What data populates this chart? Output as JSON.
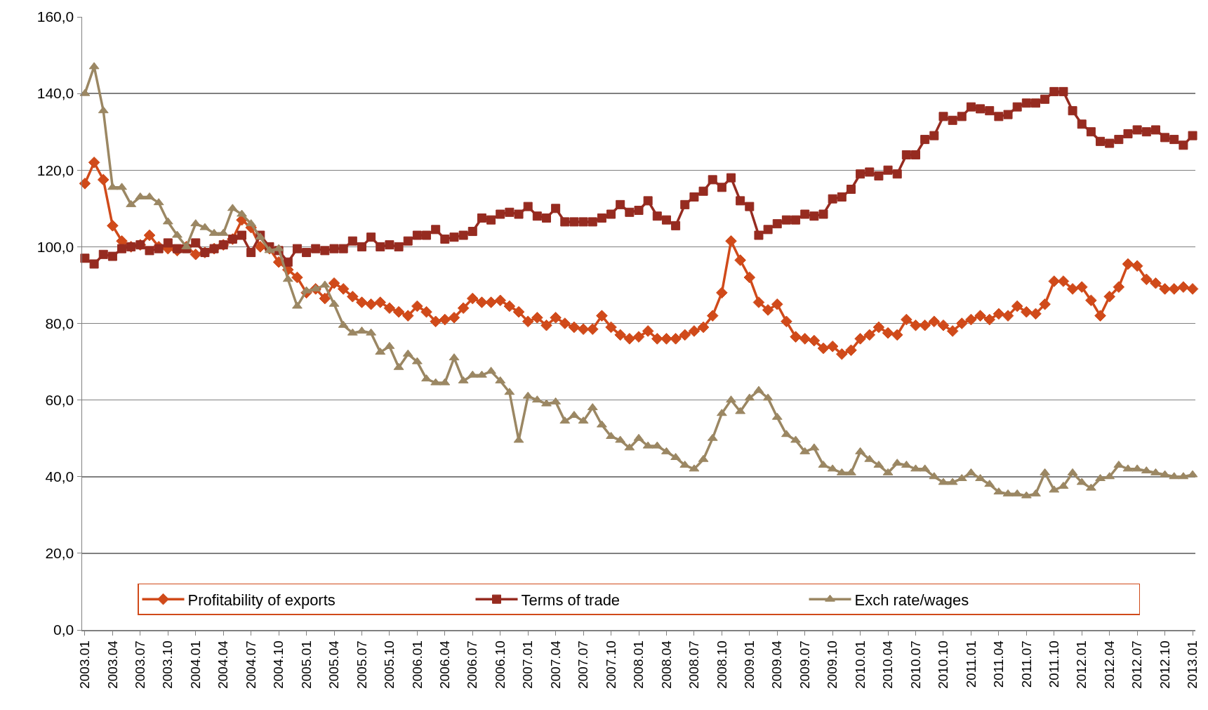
{
  "chart_data": {
    "type": "line",
    "categories": [
      "2003.01",
      null,
      null,
      "2003.04",
      null,
      null,
      "2003.07",
      null,
      null,
      "2003.10",
      null,
      null,
      "2004.01",
      null,
      null,
      "2004.04",
      null,
      null,
      "2004.07",
      null,
      null,
      "2004.10",
      null,
      null,
      "2005.01",
      null,
      null,
      "2005.04",
      null,
      null,
      "2005.07",
      null,
      null,
      "2005.10",
      null,
      null,
      "2006.01",
      null,
      null,
      "2006.04",
      null,
      null,
      "2006.07",
      null,
      null,
      "2006.10",
      null,
      null,
      "2007.01",
      null,
      null,
      "2007.04",
      null,
      null,
      "2007.07",
      null,
      null,
      "2007.10",
      null,
      null,
      "2008.01",
      null,
      null,
      "2008.04",
      null,
      null,
      "2008.07",
      null,
      null,
      "2008.10",
      null,
      null,
      "2009.01",
      null,
      null,
      "2009.04",
      null,
      null,
      "2009.07",
      null,
      null,
      "2009.10",
      null,
      null,
      "2010.01",
      null,
      null,
      "2010.04",
      null,
      null,
      "2010.07",
      null,
      null,
      "2010.10",
      null,
      null,
      "2011.01",
      null,
      null,
      "2011.04",
      null,
      null,
      "2011.07",
      null,
      null,
      "2011.10",
      null,
      null,
      "2012.01",
      null,
      null,
      "2012.04",
      null,
      null,
      "2012.07",
      null,
      null,
      "2012.10",
      null,
      null,
      "2013.01"
    ],
    "series": [
      {
        "name": "Profitability of exports",
        "color": "#d04a1a",
        "marker": "diamond",
        "values": [
          116.5,
          122,
          117.5,
          105.5,
          101.5,
          100,
          100.5,
          103,
          100,
          99.5,
          99,
          100,
          98,
          98.5,
          99.5,
          100.5,
          102,
          107,
          105,
          100,
          99.5,
          96,
          94,
          92,
          88,
          89,
          86.5,
          90.5,
          89,
          87,
          85.5,
          85,
          85.5,
          84,
          83,
          82,
          84.5,
          83,
          80.5,
          81,
          81.5,
          84,
          86.5,
          85.5,
          85.5,
          86,
          84.5,
          83,
          80.5,
          81.5,
          79.5,
          81.5,
          80,
          79,
          78.5,
          78.5,
          82,
          79,
          77,
          76,
          76.5,
          78,
          76,
          76,
          76,
          77,
          78,
          79,
          82,
          88,
          101.5,
          96.5,
          92,
          85.5,
          83.5,
          85,
          80.5,
          76.5,
          76,
          75.5,
          73.5,
          74,
          72,
          73,
          76,
          77,
          79,
          77.5,
          77,
          81,
          79.5,
          79.5,
          80.5,
          79.5,
          78,
          80,
          81,
          82,
          81,
          82.5,
          82,
          84.5,
          83,
          82.5,
          85,
          91,
          91,
          89,
          89.5,
          86,
          82,
          87,
          89.5,
          95.5,
          95,
          91.5,
          90.5,
          89,
          89,
          89.5,
          89
        ]
      },
      {
        "name": "Terms of trade",
        "color": "#962b20",
        "marker": "square",
        "values": [
          97,
          95.5,
          98,
          97.5,
          99.5,
          100,
          100.5,
          99,
          99.5,
          101,
          99.5,
          99.5,
          101,
          98.5,
          99.5,
          100.5,
          102,
          103,
          98.5,
          103,
          100,
          99,
          96,
          99.5,
          98.5,
          99.5,
          99,
          99.5,
          99.5,
          101.5,
          100,
          102.5,
          100,
          100.5,
          100,
          101.5,
          103,
          103,
          104.5,
          102,
          102.5,
          103,
          104,
          107.5,
          107,
          108.5,
          109,
          108.5,
          110.5,
          108,
          107.5,
          110,
          106.5,
          106.5,
          106.5,
          106.5,
          107.5,
          108.5,
          111,
          109,
          109.5,
          112,
          108,
          107,
          105.5,
          111,
          113,
          114.5,
          117.5,
          115.5,
          118,
          112,
          110.5,
          103,
          104.5,
          106,
          107,
          107,
          108.5,
          108,
          108.5,
          112.5,
          113,
          115,
          119,
          119.5,
          118.5,
          120,
          119,
          124,
          124,
          128,
          129,
          134,
          133,
          134,
          136.5,
          136,
          135.5,
          134,
          134.5,
          136.5,
          137.5,
          137.5,
          138.5,
          140.5,
          140.5,
          135.5,
          132,
          130,
          127.5,
          127,
          128,
          129.5,
          130.5,
          130,
          130.5,
          128.5,
          128,
          126.5,
          129
        ]
      },
      {
        "name": "Exch rate/wages",
        "color": "#9b8763",
        "marker": "triangle",
        "values": [
          140,
          147,
          135.5,
          115.5,
          115.5,
          111,
          113,
          113,
          111.5,
          106.5,
          103,
          100,
          106,
          105,
          103.5,
          103.5,
          110,
          108.5,
          106,
          102.5,
          99,
          99.5,
          91.5,
          84.5,
          88.5,
          89,
          90,
          85,
          79.5,
          77.5,
          78,
          77.5,
          72.5,
          74,
          68.5,
          72,
          70,
          65.5,
          64.5,
          64.5,
          71,
          65,
          66.5,
          66.5,
          67.5,
          65,
          62,
          49.5,
          61,
          60,
          59,
          59.5,
          54.5,
          56,
          54.5,
          58,
          53.5,
          50.5,
          49.5,
          47.5,
          50,
          48,
          48,
          46.5,
          45,
          43,
          42,
          44.5,
          50,
          56.5,
          60,
          57,
          60.5,
          62.5,
          60.5,
          55.5,
          51,
          49.5,
          46.5,
          47.5,
          43,
          42,
          41,
          41,
          46.5,
          44.5,
          43,
          41,
          43.5,
          43,
          42,
          42,
          40,
          38.5,
          38.5,
          39.5,
          41,
          39.5,
          38,
          36,
          35.5,
          35.5,
          35,
          35.5,
          41,
          36.5,
          37.5,
          41,
          38.5,
          37,
          39.5,
          40,
          43,
          42,
          42,
          41.5,
          41,
          40.5,
          40,
          40,
          40.5
        ]
      }
    ],
    "ylim": [
      0,
      160
    ],
    "yticks": [
      {
        "value": 0,
        "label": "0,0"
      },
      {
        "value": 20,
        "label": "20,0"
      },
      {
        "value": 40,
        "label": "40,0"
      },
      {
        "value": 60,
        "label": "60,0"
      },
      {
        "value": 80,
        "label": "80,0"
      },
      {
        "value": 100,
        "label": "100,0"
      },
      {
        "value": 120,
        "label": "120,0"
      },
      {
        "value": 140,
        "label": "140,0"
      },
      {
        "value": 160,
        "label": "160,0"
      }
    ],
    "grid": "y",
    "legend": "bottom",
    "line_style": "solid"
  }
}
